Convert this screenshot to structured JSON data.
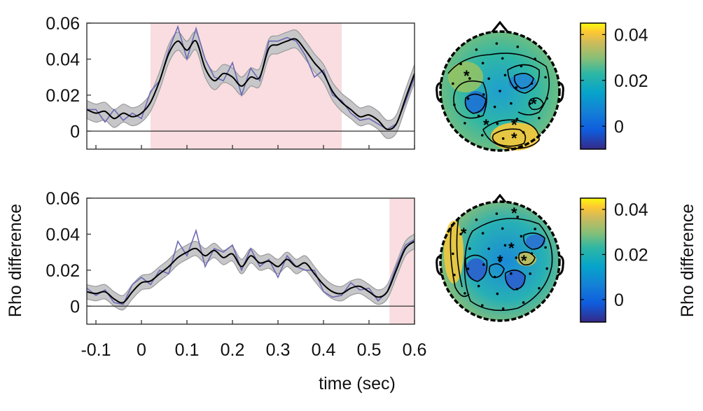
{
  "chart_data": [
    {
      "type": "line",
      "panel": "top",
      "xlabel": "",
      "ylabel": "",
      "xlim": [
        -0.12,
        0.6
      ],
      "ylim": [
        -0.01,
        0.06
      ],
      "yticks": [
        0,
        0.02,
        0.04,
        0.06
      ],
      "ytick_labels": [
        "0",
        "0.02",
        "0.04",
        "0.06"
      ],
      "xtick_labels": [],
      "shaded_interval": [
        0.02,
        0.44
      ],
      "x": [
        -0.12,
        -0.1,
        -0.08,
        -0.06,
        -0.04,
        -0.02,
        0,
        0.02,
        0.04,
        0.06,
        0.08,
        0.1,
        0.12,
        0.14,
        0.16,
        0.18,
        0.2,
        0.22,
        0.24,
        0.26,
        0.28,
        0.3,
        0.32,
        0.34,
        0.36,
        0.38,
        0.4,
        0.42,
        0.44,
        0.46,
        0.48,
        0.5,
        0.52,
        0.54,
        0.56,
        0.58,
        0.6
      ],
      "series": [
        {
          "values": [
            0.012,
            0.01,
            0.011,
            0.007,
            0.01,
            0.008,
            0.01,
            0.016,
            0.028,
            0.043,
            0.05,
            0.045,
            0.05,
            0.035,
            0.028,
            0.032,
            0.03,
            0.025,
            0.03,
            0.03,
            0.046,
            0.048,
            0.05,
            0.051,
            0.045,
            0.038,
            0.032,
            0.022,
            0.016,
            0.012,
            0.008,
            0.009,
            0.006,
            0.001,
            0.004,
            0.018,
            0.032
          ],
          "band": 0.005
        },
        {
          "values": [
            0.012,
            0.012,
            0.005,
            0.012,
            0.006,
            0.01,
            0.007,
            0.022,
            0.028,
            0.045,
            0.058,
            0.04,
            0.057,
            0.04,
            0.03,
            0.028,
            0.038,
            0.02,
            0.035,
            0.028,
            0.05,
            0.05,
            0.052,
            0.05,
            0.042,
            0.03,
            0.034,
            0.02,
            0.017,
            0.01,
            0.006,
            0.007,
            0.004,
            0.001,
            0.004,
            0.016,
            0.03
          ]
        }
      ],
      "colors": {
        "mean": "#000000",
        "raw": "#6b69b4",
        "band": "#c7c7c9",
        "shade": "#f9dde0"
      }
    },
    {
      "type": "line",
      "panel": "bottom",
      "xlabel": "time (sec)",
      "ylabel": "Rho difference",
      "xlim": [
        -0.12,
        0.6
      ],
      "ylim": [
        -0.01,
        0.06
      ],
      "yticks": [
        0,
        0.02,
        0.04,
        0.06
      ],
      "ytick_labels": [
        "0",
        "0.02",
        "0.04",
        "0.06"
      ],
      "xticks": [
        -0.1,
        0,
        0.1,
        0.2,
        0.3,
        0.4,
        0.5,
        0.6
      ],
      "xtick_labels": [
        "-0.1",
        "0",
        "0.1",
        "0.2",
        "0.3",
        "0.4",
        "0.5",
        "0.6"
      ],
      "shaded_interval": [
        0.545,
        0.6
      ],
      "x": [
        -0.12,
        -0.1,
        -0.08,
        -0.06,
        -0.04,
        -0.02,
        0,
        0.02,
        0.04,
        0.06,
        0.08,
        0.1,
        0.12,
        0.14,
        0.16,
        0.18,
        0.2,
        0.22,
        0.24,
        0.26,
        0.28,
        0.3,
        0.32,
        0.34,
        0.36,
        0.38,
        0.4,
        0.42,
        0.44,
        0.46,
        0.48,
        0.5,
        0.52,
        0.54,
        0.56,
        0.58,
        0.6
      ],
      "series": [
        {
          "values": [
            0.008,
            0.007,
            0.008,
            0.004,
            0.002,
            0.008,
            0.013,
            0.014,
            0.018,
            0.022,
            0.027,
            0.03,
            0.032,
            0.028,
            0.031,
            0.027,
            0.029,
            0.022,
            0.028,
            0.024,
            0.025,
            0.022,
            0.026,
            0.022,
            0.024,
            0.018,
            0.012,
            0.008,
            0.007,
            0.01,
            0.011,
            0.008,
            0.005,
            0.008,
            0.02,
            0.032,
            0.036
          ],
          "band": 0.004
        },
        {
          "values": [
            0.01,
            0.006,
            0.009,
            0.002,
            0.001,
            0.012,
            0.016,
            0.012,
            0.02,
            0.018,
            0.036,
            0.028,
            0.042,
            0.022,
            0.032,
            0.03,
            0.034,
            0.02,
            0.032,
            0.022,
            0.026,
            0.016,
            0.028,
            0.022,
            0.02,
            0.02,
            0.008,
            0.005,
            0.006,
            0.013,
            0.009,
            0.01,
            0.003,
            0.008,
            0.022,
            0.034,
            0.037
          ]
        }
      ],
      "colors": {
        "mean": "#000000",
        "raw": "#6b69b4",
        "band": "#c7c7c9",
        "shade": "#f9dde0"
      }
    },
    {
      "type": "heatmap",
      "panel": "topomap-top",
      "colorbar_ticks": [
        0,
        0.02,
        0.04
      ],
      "colorbar_tick_labels": [
        "0",
        "0.02",
        "0.04"
      ],
      "colorbar_label": "",
      "colorbar_range": [
        -0.01,
        0.045
      ]
    },
    {
      "type": "heatmap",
      "panel": "topomap-bottom",
      "colorbar_ticks": [
        0,
        0.02,
        0.04
      ],
      "colorbar_tick_labels": [
        "0",
        "0.02",
        "0.04"
      ],
      "colorbar_label": "Rho difference",
      "colorbar_range": [
        -0.01,
        0.045
      ]
    }
  ]
}
